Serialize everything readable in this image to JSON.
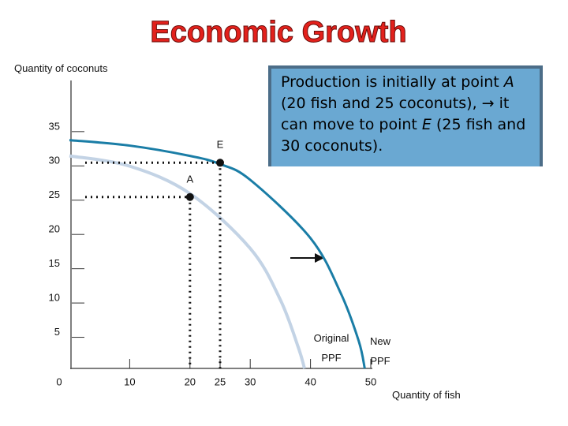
{
  "title": "Economic Growth",
  "chart_data": {
    "type": "line",
    "y_label": "Quantity of coconuts",
    "x_label": "Quantity of fish",
    "xlim": [
      0,
      50
    ],
    "xticks": [
      0,
      10,
      20,
      25,
      30,
      40,
      50
    ],
    "ylim": [
      0,
      42
    ],
    "yticks": [
      5,
      10,
      15,
      20,
      25,
      30,
      35
    ],
    "series": [
      {
        "name": "Original PPF",
        "color": "#c3d3e5",
        "x": [
          0,
          10,
          20,
          30,
          35,
          38,
          39
        ],
        "values": [
          31,
          29.5,
          25.5,
          17.5,
          10,
          3,
          0
        ]
      },
      {
        "name": "New PPF",
        "color": "#1a7da6",
        "x": [
          0,
          10,
          20,
          25,
          30,
          40,
          45,
          48,
          49
        ],
        "values": [
          33.3,
          32.5,
          31,
          29.8,
          27.5,
          19,
          11,
          4,
          0
        ]
      }
    ],
    "points": [
      {
        "label": "A",
        "x": 20,
        "y": 25
      },
      {
        "label": "E",
        "x": 25,
        "y": 30
      }
    ],
    "annotation": [
      "Production is initially at point ",
      "A",
      " (20 fish and 25 coconuts), ",
      "→ it can move to point ",
      "E",
      " (25 fish and 30 coconuts)."
    ]
  }
}
